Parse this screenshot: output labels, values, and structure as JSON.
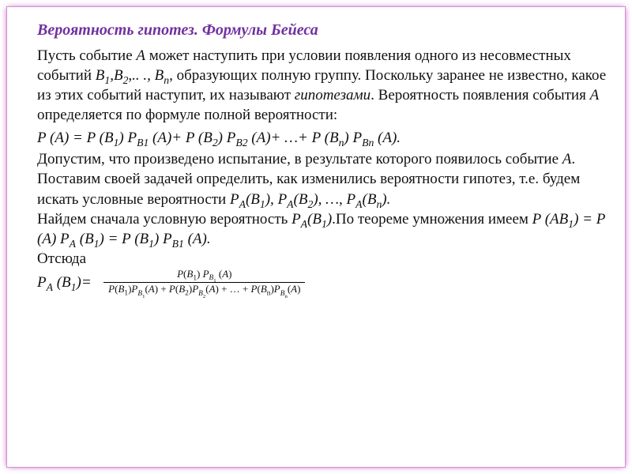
{
  "colors": {
    "title": "#7030a0",
    "text": "#111111",
    "frame_border": "#d090d0",
    "frame_shadow": "rgba(200,80,200,0.45)",
    "background": "#ffffff"
  },
  "typography": {
    "title_fontsize": 20,
    "body_fontsize": 19,
    "frac_fontsize": 13,
    "font_family": "Times New Roman"
  },
  "title": "Вероятность гипотез. Формулы Бейеса",
  "p1a": "Пусть событие ",
  "p1b": " может наступить при условии появления одного из несовместных событий ",
  "p1_ev": "A",
  "p1_list": "B₁,B₂,.. ., Bₙ,",
  "p1c": " образующих полную группу. Поскольку заранее не известно, какое из этих событий наступит, их называют ",
  "p1_hyp": "гипотезами",
  "p1d": ". Вероятность появления события ",
  "p1e": "A",
  "p1f": " определяется по формуле полной вероятности:",
  "formula1": "P (A) = P (B₁) P_{B1} (A)+ P (B₂) P_{B2} (A)+ …+ P (Bₙ) P_{Bn} (A).",
  "p2a": "Допустим, что произведено испытание, в результате которого появилось событие ",
  "p2ev": "A",
  "p2b": ". Поставим своей задачей определить, как изменились вероятности гипотез, т.е. будем искать условные вероятности    ",
  "p2probs": "P_A(B₁), P_A(B₂), …, P_A(Bₙ).",
  "p3a": "Найдем сначала условную вероятность ",
  "p3prob": "P_A(B₁)",
  "p3b": ".По теореме умножения имеем    ",
  "formula2": "P (AB₁) = P (A) P_A (B₁) = P (B₁) P_{B1} (A).",
  "p4": "Отсюда",
  "frac_label": "P_A (B₁)=",
  "frac_num": "P(B₁) P_{B₁} (A)",
  "frac_den": "P(B₁)P_{B₁}(A) + P(B₂)P_{B₂}(A) + … + P(Bₙ)P_{Bₙ}(A)"
}
